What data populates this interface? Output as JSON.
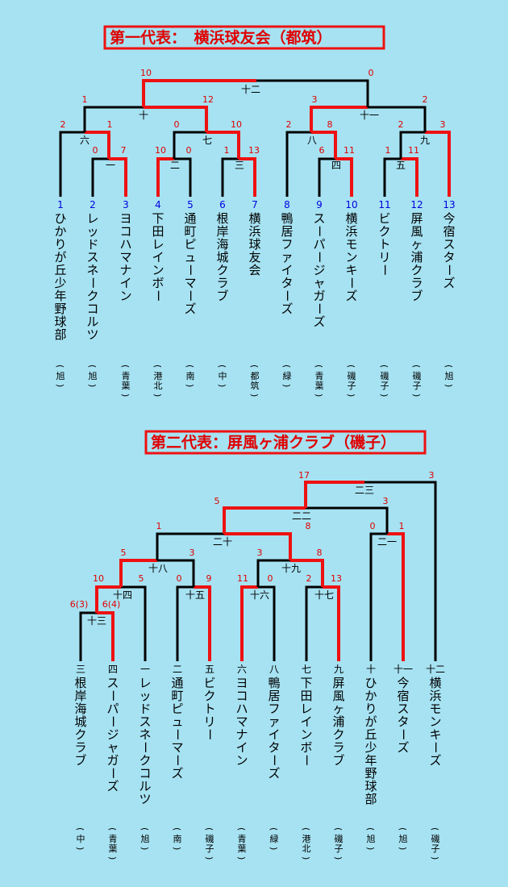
{
  "sections": [
    {
      "title": "第一代表：　横浜球友会（都筑）",
      "teams": [
        {
          "seed": "1",
          "name": "ひかりが丘少年野球部",
          "district": "(旭)"
        },
        {
          "seed": "2",
          "name": "レッドスネークコルツ",
          "district": "(旭)"
        },
        {
          "seed": "3",
          "name": "ヨコハマナイン",
          "district": "(青葉)"
        },
        {
          "seed": "4",
          "name": "下田レインボー",
          "district": "(港北)"
        },
        {
          "seed": "5",
          "name": "通町ピューマーズ",
          "district": "(南)"
        },
        {
          "seed": "6",
          "name": "根岸海城クラブ",
          "district": "(中)"
        },
        {
          "seed": "7",
          "name": "横浜球友会",
          "district": "(都筑)"
        },
        {
          "seed": "8",
          "name": "鴨居ファイターズ",
          "district": "(緑)"
        },
        {
          "seed": "9",
          "name": "スーパージャガーズ",
          "district": "(青葉)"
        },
        {
          "seed": "10",
          "name": "横浜モンキーズ",
          "district": "(磯子)"
        },
        {
          "seed": "11",
          "name": "ビクトリー",
          "district": "(磯子)"
        },
        {
          "seed": "12",
          "name": "屏風ヶ浦クラブ",
          "district": "(磯子)"
        },
        {
          "seed": "13",
          "name": "今宿スターズ",
          "district": "(旭)"
        }
      ],
      "matches": [
        {
          "label": "一",
          "left_score": "0",
          "right_score": "7"
        },
        {
          "label": "二",
          "left_score": "10",
          "right_score": "0"
        },
        {
          "label": "三",
          "left_score": "1",
          "right_score": "13"
        },
        {
          "label": "四",
          "left_score": "6",
          "right_score": "11"
        },
        {
          "label": "五",
          "left_score": "1",
          "right_score": "11"
        },
        {
          "label": "六",
          "left_score": "2",
          "right_score": "1"
        },
        {
          "label": "七",
          "left_score": "0",
          "right_score": "10"
        },
        {
          "label": "八",
          "left_score": "2",
          "right_score": "8"
        },
        {
          "label": "九",
          "left_score": "2",
          "right_score": "3"
        },
        {
          "label": "十",
          "left_score": "1",
          "right_score": "12"
        },
        {
          "label": "十一",
          "left_score": "3",
          "right_score": "2"
        },
        {
          "label": "十二",
          "left_score": "10",
          "right_score": "0"
        }
      ]
    },
    {
      "title": "第二代表：屏風ヶ浦クラブ（磯子）",
      "teams": [
        {
          "seed": "三",
          "name": "根岸海城クラブ",
          "district": "(中)"
        },
        {
          "seed": "四",
          "name": "スーパージャガーズ",
          "district": "(青葉)"
        },
        {
          "seed": "一",
          "name": "レッドスネークコルツ",
          "district": "(旭)"
        },
        {
          "seed": "二",
          "name": "通町ピューマーズ",
          "district": "(南)"
        },
        {
          "seed": "五",
          "name": "ビクトリー",
          "district": "(磯子)"
        },
        {
          "seed": "六",
          "name": "ヨコハマナイン",
          "district": "(青葉)"
        },
        {
          "seed": "八",
          "name": "鴨居ファイターズ",
          "district": "(緑)"
        },
        {
          "seed": "七",
          "name": "下田レインボー",
          "district": "(港北)"
        },
        {
          "seed": "九",
          "name": "屏風ヶ浦クラブ",
          "district": "(磯子)"
        },
        {
          "seed": "十",
          "name": "ひかりが丘少年野球部",
          "district": "(旭)"
        },
        {
          "seed": "十一",
          "name": "今宿スターズ",
          "district": "(旭)"
        },
        {
          "seed": "十二",
          "name": "横浜モンキーズ",
          "district": "(磯子)"
        }
      ],
      "matches": [
        {
          "label": "十三",
          "left_score": "6(3)",
          "right_score": "6(4)"
        },
        {
          "label": "十四",
          "left_score": "10",
          "right_score": "5"
        },
        {
          "label": "十五",
          "left_score": "0",
          "right_score": "9"
        },
        {
          "label": "十六",
          "left_score": "11",
          "right_score": "0"
        },
        {
          "label": "十七",
          "left_score": "2",
          "right_score": "13"
        },
        {
          "label": "十八",
          "left_score": "5",
          "right_score": "3"
        },
        {
          "label": "十九",
          "left_score": "3",
          "right_score": "8"
        },
        {
          "label": "二十",
          "left_score": "1",
          "right_score": "8"
        },
        {
          "label": "二一",
          "left_score": "0",
          "right_score": "1"
        },
        {
          "label": "二二",
          "left_score": "5",
          "right_score": "3"
        },
        {
          "label": "二三",
          "left_score": "17",
          "right_score": "3"
        }
      ]
    }
  ],
  "colors": {
    "background": "#a6e2f2",
    "winner_line": "#ee1111",
    "loser_line": "#000000",
    "score": "#e00000",
    "seed_blue": "#0000e0"
  }
}
